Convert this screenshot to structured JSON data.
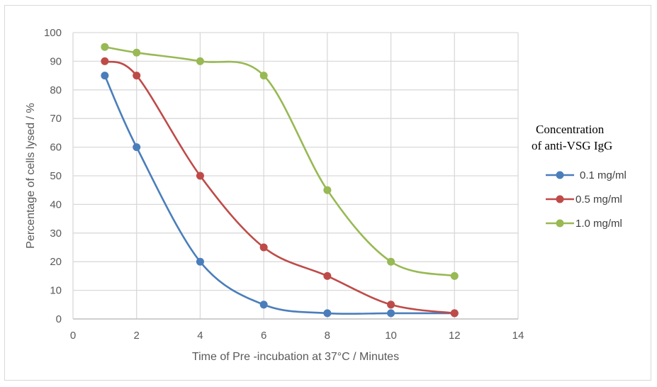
{
  "chart_data": {
    "type": "line",
    "title": "",
    "xlabel": "Time of Pre -incubation at 37°C / Minutes",
    "ylabel": "Percentage of cells lysed / %",
    "xlim": [
      0,
      14
    ],
    "ylim": [
      0,
      100
    ],
    "xticks": [
      0,
      2,
      4,
      6,
      8,
      10,
      12,
      14
    ],
    "yticks": [
      0,
      10,
      20,
      30,
      40,
      50,
      60,
      70,
      80,
      90,
      100
    ],
    "grid": true,
    "smooth": true,
    "legend": {
      "title_line1": "Concentration",
      "title_line2": "of anti-VSG IgG",
      "position": "right"
    },
    "x": [
      1,
      2,
      4,
      6,
      8,
      10,
      12
    ],
    "series": [
      {
        "name": "0.1 mg/ml",
        "color": "#4a7ebb",
        "values": [
          85,
          60,
          20,
          5,
          2,
          2,
          2
        ]
      },
      {
        "name": "0.5 mg/ml",
        "color": "#be4b48",
        "values": [
          90,
          85,
          50,
          25,
          15,
          5,
          2
        ]
      },
      {
        "name": "1.0 mg/ml",
        "color": "#98b954",
        "values": [
          95,
          93,
          90,
          85,
          45,
          20,
          15
        ]
      }
    ]
  }
}
